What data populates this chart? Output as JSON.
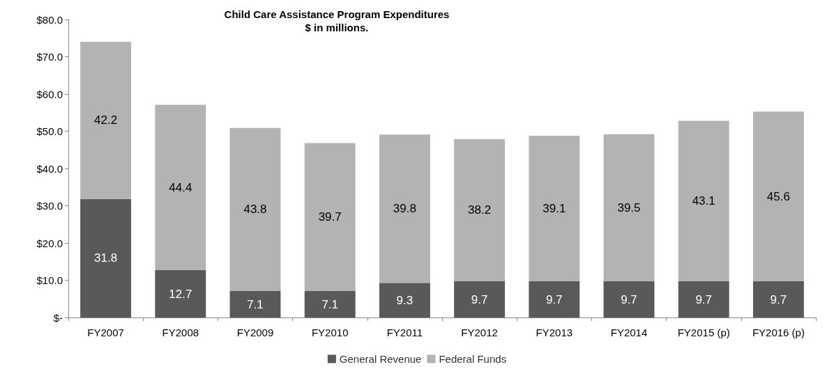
{
  "chart_data": {
    "type": "bar",
    "title": "Child Care Assistance Program Expenditures",
    "subtitle": "$ in millions.",
    "categories": [
      "FY2007",
      "FY2008",
      "FY2009",
      "FY2010",
      "FY2011",
      "FY2012",
      "FY2013",
      "FY2014",
      "FY2015 (p)",
      "FY2016 (p)"
    ],
    "series": [
      {
        "name": "General Revenue",
        "color": "#595959",
        "values": [
          31.8,
          12.7,
          7.1,
          7.1,
          9.3,
          9.7,
          9.7,
          9.7,
          9.7,
          9.7
        ]
      },
      {
        "name": "Federal Funds",
        "color": "#b3b3b3",
        "values": [
          42.2,
          44.4,
          43.8,
          39.7,
          39.8,
          38.2,
          39.1,
          39.5,
          43.1,
          45.6
        ]
      }
    ],
    "stacked": true,
    "data_labels": true,
    "legend": "bottom",
    "grid": false,
    "ylim": [
      0,
      80
    ],
    "yticks": [
      {
        "value": 0,
        "label": "$-"
      },
      {
        "value": 10,
        "label": "$10.0"
      },
      {
        "value": 20,
        "label": "$20.0"
      },
      {
        "value": 30,
        "label": "$30.0"
      },
      {
        "value": 40,
        "label": "$40.0"
      },
      {
        "value": 50,
        "label": "$50.0"
      },
      {
        "value": 60,
        "label": "$60.0"
      },
      {
        "value": 70,
        "label": "$70.0"
      },
      {
        "value": 80,
        "label": "$80.0"
      }
    ]
  }
}
